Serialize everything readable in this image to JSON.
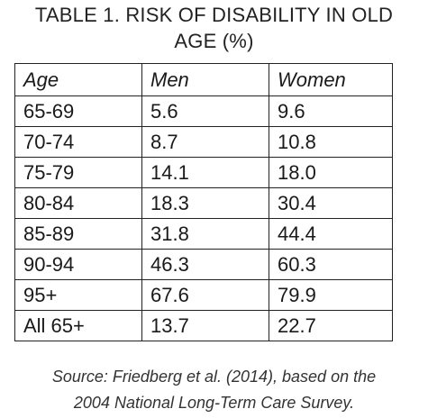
{
  "title_line1": "TABLE 1. RISK OF DISABILITY IN OLD",
  "title_line2": "AGE (%)",
  "source_line1": "Source: Friedberg et al. (2014), based on the",
  "source_line2": "2004 National Long-Term Care Survey.",
  "chart_data": {
    "type": "table",
    "title": "TABLE 1. RISK OF DISABILITY IN OLD AGE (%)",
    "columns": [
      "Age",
      "Men",
      "Women"
    ],
    "rows": [
      [
        "65-69",
        "5.6",
        "9.6"
      ],
      [
        "70-74",
        "8.7",
        "10.8"
      ],
      [
        "75-79",
        "14.1",
        "18.0"
      ],
      [
        "80-84",
        "18.3",
        "30.4"
      ],
      [
        "85-89",
        "31.8",
        "44.4"
      ],
      [
        "90-94",
        "46.3",
        "60.3"
      ],
      [
        "95+",
        "67.6",
        "79.9"
      ],
      [
        "All 65+",
        "13.7",
        "22.7"
      ]
    ],
    "note": "Source: Friedberg et al. (2014), based on the 2004 National Long-Term Care Survey."
  }
}
